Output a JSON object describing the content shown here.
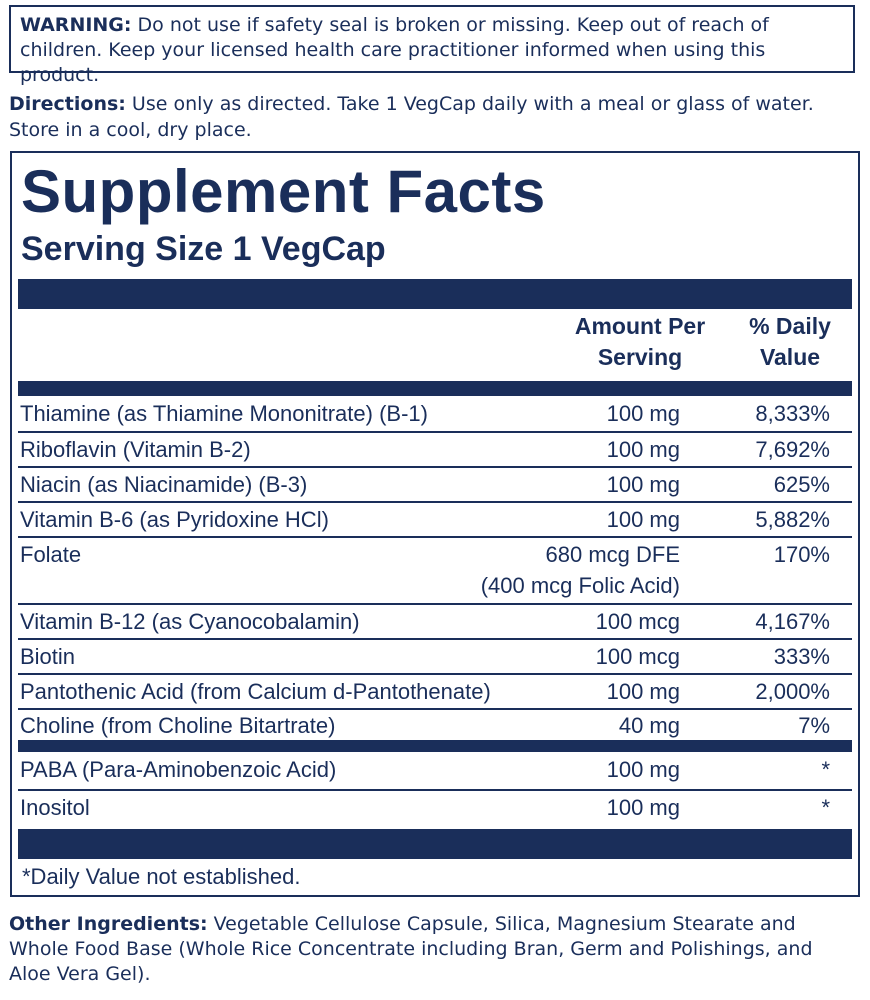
{
  "warning": {
    "label": "WARNING:",
    "text": " Do not use if safety seal is broken or missing. Keep out of reach of children. Keep your licensed health care practitioner informed when using this product."
  },
  "directions": {
    "label": "Directions:",
    "text": " Use only as directed. Take 1 VegCap daily with a meal or glass of water. Store in a cool, dry place."
  },
  "facts": {
    "title": "Supplement Facts",
    "serving_size": "Serving Size 1 VegCap",
    "col_amount_line1": "Amount Per",
    "col_amount_line2": "Serving",
    "col_dv_line1": "% Daily",
    "col_dv_line2": "Value",
    "rows": [
      {
        "name": "Thiamine (as Thiamine Mononitrate) (B-1)",
        "amount": "100 mg",
        "dv": "8,333%"
      },
      {
        "name": "Riboflavin (Vitamin B-2)",
        "amount": "100 mg",
        "dv": "7,692%"
      },
      {
        "name": "Niacin (as Niacinamide) (B-3)",
        "amount": "100 mg",
        "dv": "625%"
      },
      {
        "name": "Vitamin B-6 (as Pyridoxine HCl)",
        "amount": "100 mg",
        "dv": "5,882%"
      },
      {
        "name": "Folate",
        "amount": "680 mcg DFE",
        "amount2": "(400 mcg Folic Acid)",
        "dv": "170%"
      },
      {
        "name": "Vitamin B-12 (as Cyanocobalamin)",
        "amount": "100 mcg",
        "dv": "4,167%"
      },
      {
        "name": "Biotin",
        "amount": "100 mcg",
        "dv": "333%"
      },
      {
        "name": "Pantothenic Acid (from Calcium d-Pantothenate)",
        "amount": "100 mg",
        "dv": "2,000%"
      },
      {
        "name": "Choline (from Choline Bitartrate)",
        "amount": "40 mg",
        "dv": "7%"
      },
      {
        "name": "PABA (Para-Aminobenzoic Acid)",
        "amount": "100 mg",
        "dv": "*"
      },
      {
        "name": "Inositol",
        "amount": "100 mg",
        "dv": "*"
      }
    ],
    "footnote": "*Daily Value not established."
  },
  "other_ingredients": {
    "label": "Other Ingredients:",
    "text": " Vegetable Cellulose Capsule, Silica, Magnesium Stearate and Whole Food Base (Whole Rice Concentrate including Bran, Germ and Polishings, and Aloe Vera Gel)."
  },
  "colors": {
    "ink": "#1a2e5a",
    "background": "#ffffff"
  }
}
